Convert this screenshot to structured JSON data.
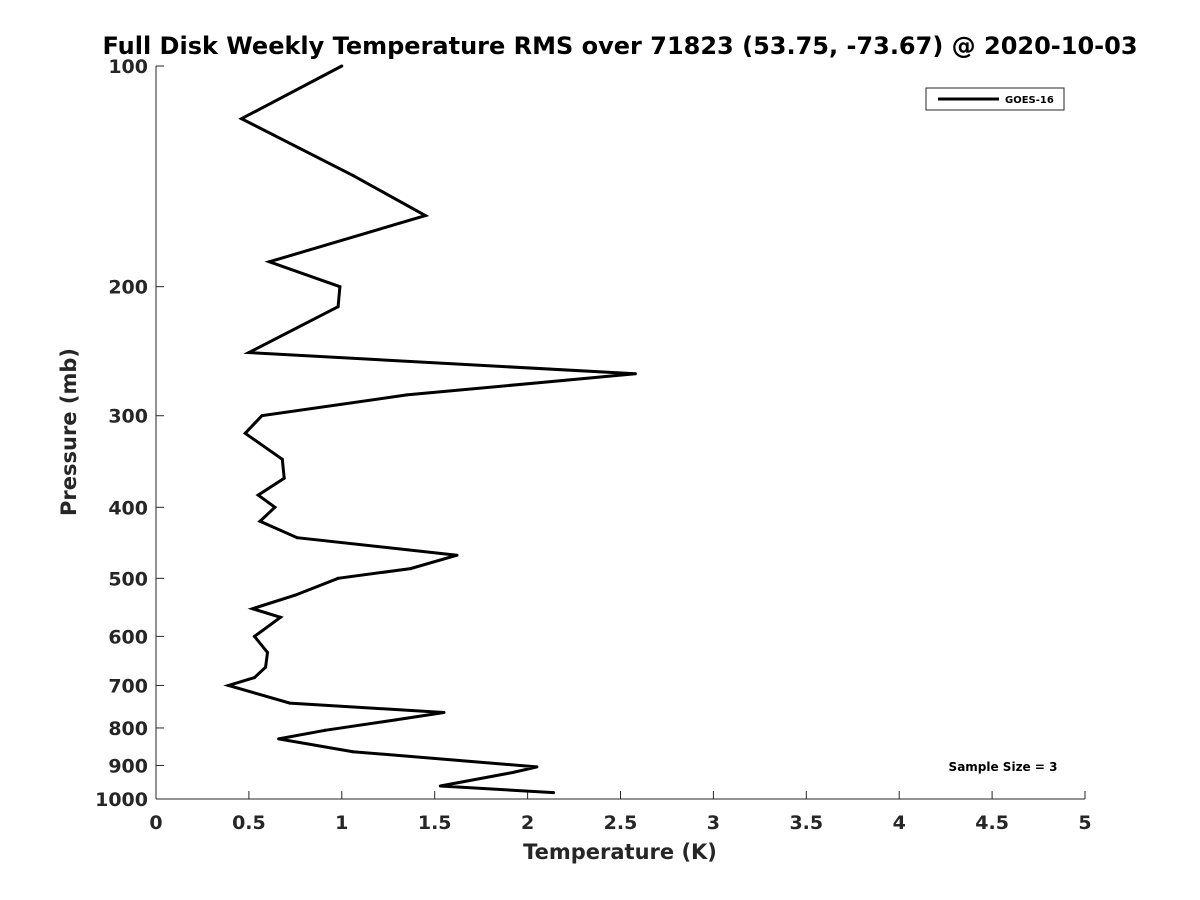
{
  "chart_data": {
    "type": "line",
    "title": "Full Disk Weekly Temperature RMS over 71823 (53.75, -73.67) @ 2020-10-03",
    "xlabel": "Temperature (K)",
    "ylabel": "Pressure (mb)",
    "xlim": [
      0,
      5
    ],
    "ylim": [
      100,
      1000
    ],
    "y_scale": "log",
    "y_reversed": true,
    "grid": false,
    "legend_position": "top-right",
    "x_ticks": [
      "0",
      "0.5",
      "1",
      "1.5",
      "2",
      "2.5",
      "3",
      "3.5",
      "4",
      "4.5",
      "5"
    ],
    "y_ticks": [
      "100",
      "200",
      "300",
      "400",
      "500",
      "600",
      "700",
      "800",
      "900",
      "1000"
    ],
    "annotation": "Sample Size = 3",
    "series": [
      {
        "name": "GOES-16",
        "color": "#000000",
        "x": [
          1.0,
          0.46,
          1.06,
          1.45,
          0.61,
          0.99,
          0.98,
          0.5,
          2.58,
          1.35,
          0.57,
          0.48,
          0.68,
          0.69,
          0.55,
          0.64,
          0.56,
          0.76,
          1.62,
          1.37,
          0.98,
          0.75,
          0.52,
          0.67,
          0.53,
          0.6,
          0.59,
          0.53,
          0.39,
          0.72,
          1.55,
          1.29,
          0.91,
          0.66,
          1.06,
          2.05,
          1.92,
          1.53,
          2.14
        ],
        "y": [
          100,
          118,
          141,
          160,
          185,
          200,
          213,
          246,
          263,
          281,
          300,
          317,
          344,
          365,
          385,
          400,
          418,
          440,
          465,
          485,
          500,
          527,
          550,
          565,
          600,
          631,
          661,
          683,
          700,
          740,
          762,
          780,
          806,
          828,
          862,
          904,
          920,
          960,
          980
        ]
      }
    ]
  }
}
